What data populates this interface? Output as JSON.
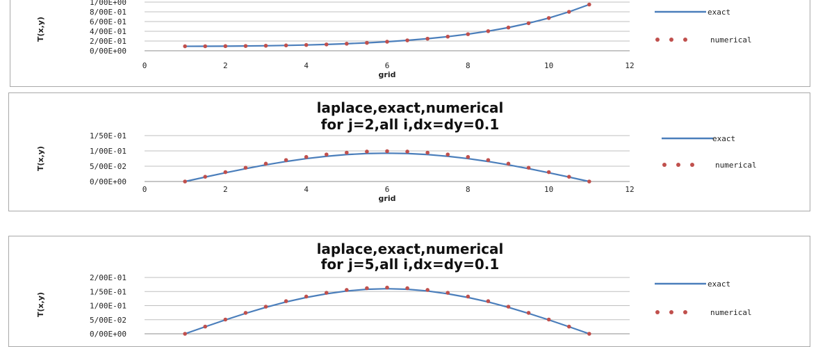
{
  "colors": {
    "exact": "#4a7ebb",
    "numerical": "#c0504d",
    "grid": "#bfbfbf",
    "axis": "#8c8c8c"
  },
  "chart_data": [
    {
      "type": "line",
      "title_lines": [],
      "xlabel": "grid",
      "ylabel": "T(x,y)",
      "xlim": [
        0,
        12
      ],
      "ylim": [
        0,
        1.0
      ],
      "x_ticks": [
        "0",
        "2",
        "4",
        "6",
        "8",
        "10",
        "12"
      ],
      "y_ticks": [
        "0/00E+00",
        "2/00E-01",
        "4/00E-01",
        "6/00E-01",
        "8/00E-01",
        "1/00E+00"
      ],
      "legend": {
        "position": "right",
        "entries": [
          "exact",
          "numerical"
        ]
      },
      "x": [
        1,
        1.5,
        2,
        2.5,
        3,
        3.5,
        4,
        4.5,
        5,
        5.5,
        6,
        6.5,
        7,
        7.5,
        8,
        8.5,
        9,
        9.5,
        10,
        10.5,
        11
      ],
      "series": [
        {
          "name": "exact",
          "style": "line",
          "values": [
            0.092,
            0.093,
            0.095,
            0.098,
            0.103,
            0.11,
            0.119,
            0.13,
            0.145,
            0.163,
            0.186,
            0.214,
            0.248,
            0.29,
            0.341,
            0.403,
            0.477,
            0.566,
            0.673,
            0.8,
            0.95
          ]
        },
        {
          "name": "numerical",
          "style": "dots",
          "values": [
            0.092,
            0.093,
            0.095,
            0.098,
            0.103,
            0.11,
            0.119,
            0.13,
            0.145,
            0.163,
            0.186,
            0.214,
            0.248,
            0.29,
            0.341,
            0.403,
            0.477,
            0.566,
            0.673,
            0.8,
            0.95
          ]
        }
      ]
    },
    {
      "type": "line",
      "title_lines": [
        "laplace,exact,numerical",
        "for j=2,all i,dx=dy=0.1"
      ],
      "xlabel": "grid",
      "ylabel": "T(x,y)",
      "xlim": [
        0,
        12
      ],
      "ylim": [
        0,
        0.15
      ],
      "x_ticks": [
        "0",
        "2",
        "4",
        "6",
        "8",
        "10",
        "12"
      ],
      "y_ticks": [
        "0/00E+00",
        "5/00E-02",
        "1/00E-01",
        "1/50E-01"
      ],
      "legend": {
        "position": "right",
        "entries": [
          "exact",
          "numerical"
        ]
      },
      "x": [
        1,
        1.5,
        2,
        2.5,
        3,
        3.5,
        4,
        4.5,
        5,
        5.5,
        6,
        6.5,
        7,
        7.5,
        8,
        8.5,
        9,
        9.5,
        10,
        10.5,
        11
      ],
      "series": [
        {
          "name": "exact",
          "style": "line",
          "values": [
            0.0,
            0.0145,
            0.0286,
            0.042,
            0.0544,
            0.0654,
            0.0748,
            0.0824,
            0.088,
            0.0914,
            0.0925,
            0.0914,
            0.088,
            0.0824,
            0.0748,
            0.0654,
            0.0544,
            0.042,
            0.0286,
            0.0145,
            0.0
          ]
        },
        {
          "name": "numerical",
          "style": "dots",
          "values": [
            0.0,
            0.0155,
            0.0306,
            0.045,
            0.0583,
            0.0701,
            0.0802,
            0.0883,
            0.0943,
            0.0979,
            0.0991,
            0.0979,
            0.0943,
            0.0883,
            0.0802,
            0.0701,
            0.0583,
            0.045,
            0.0306,
            0.0155,
            0.0
          ]
        }
      ]
    },
    {
      "type": "line",
      "title_lines": [
        "laplace,exact,numerical",
        "for j=5,all i,dx=dy=0.1"
      ],
      "xlabel": "",
      "ylabel": "T(x,y)",
      "xlim": [
        0,
        12
      ],
      "ylim": [
        0,
        0.2
      ],
      "x_ticks": [],
      "y_ticks": [
        "0/00E+00",
        "5/00E-02",
        "1/00E-01",
        "1/50E-01",
        "2/00E-01"
      ],
      "legend": {
        "position": "right",
        "entries": [
          "exact",
          "numerical"
        ]
      },
      "x": [
        1,
        1.5,
        2,
        2.5,
        3,
        3.5,
        4,
        4.5,
        5,
        5.5,
        6,
        6.5,
        7,
        7.5,
        8,
        8.5,
        9,
        9.5,
        10,
        10.5,
        11
      ],
      "series": [
        {
          "name": "exact",
          "style": "line",
          "values": [
            0.0,
            0.025,
            0.0494,
            0.0725,
            0.094,
            0.113,
            0.129,
            0.142,
            0.152,
            0.158,
            0.16,
            0.158,
            0.152,
            0.142,
            0.129,
            0.113,
            0.094,
            0.0725,
            0.0494,
            0.025,
            0.0
          ]
        },
        {
          "name": "numerical",
          "style": "dots",
          "values": [
            0.0,
            0.0256,
            0.0506,
            0.0743,
            0.0963,
            0.1158,
            0.1323,
            0.1456,
            0.1557,
            0.1619,
            0.164,
            0.1619,
            0.1557,
            0.1456,
            0.1323,
            0.1158,
            0.0963,
            0.0743,
            0.0506,
            0.0256,
            0.0
          ]
        }
      ]
    }
  ]
}
